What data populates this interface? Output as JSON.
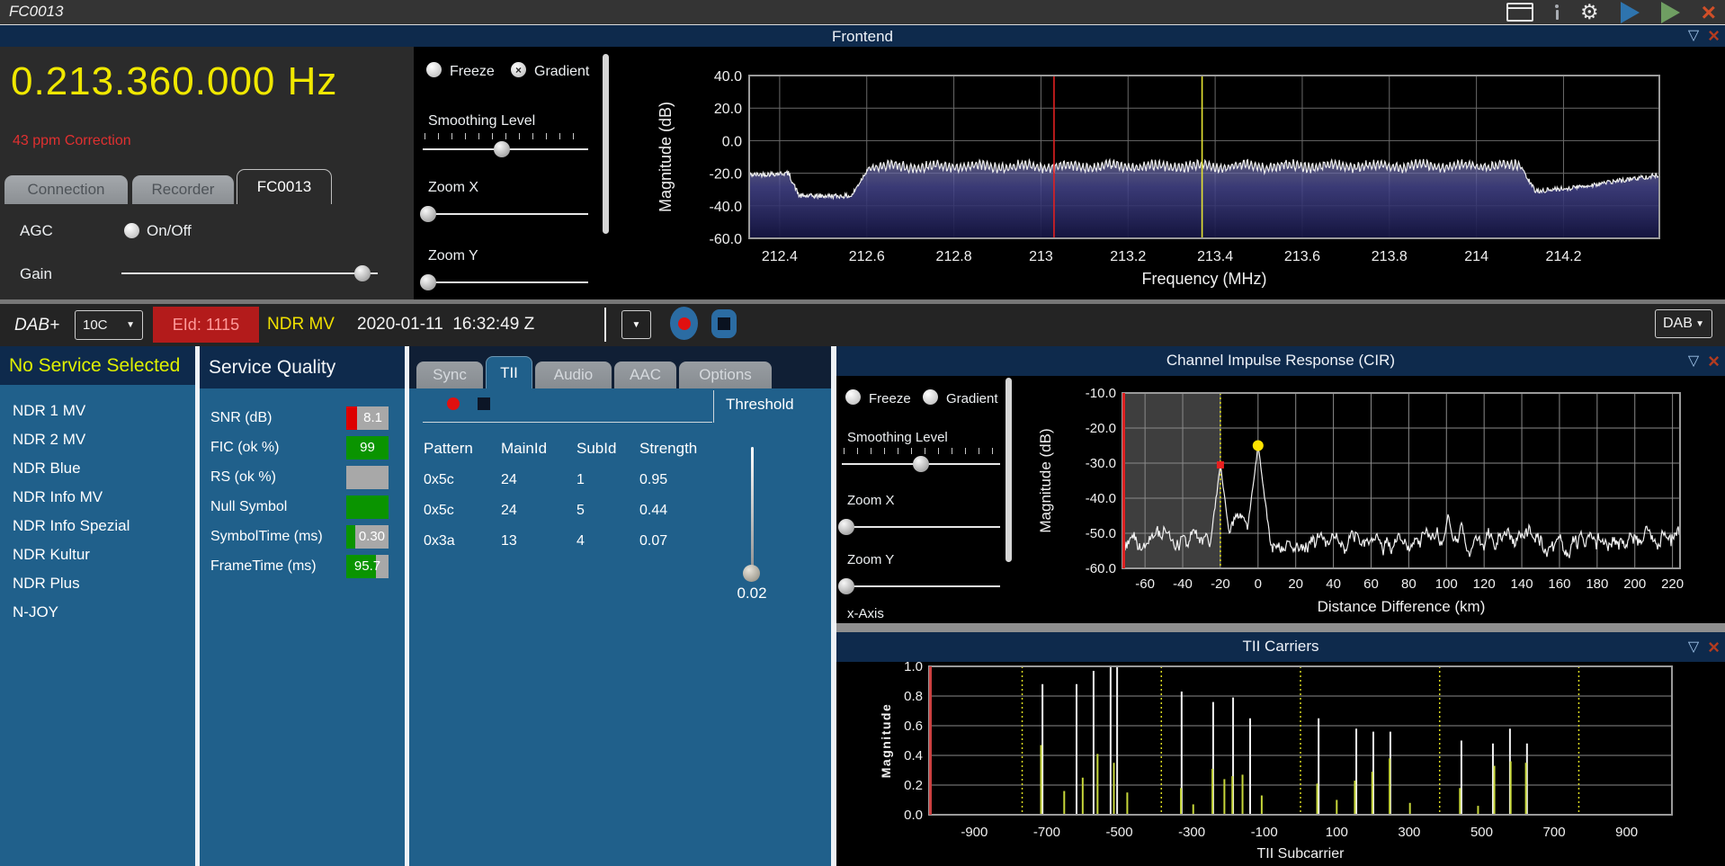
{
  "titlebar": {
    "title": "FC0013",
    "icons": [
      "window-icon",
      "info-icon",
      "gear-icon",
      "play-blue-icon",
      "play-green-icon",
      "close-icon"
    ]
  },
  "frontend": {
    "panel_title": "Frontend",
    "frequency": "0.213.360.000 Hz",
    "correction": "43 ppm Correction",
    "tabs": [
      "Connection",
      "Recorder",
      "FC0013"
    ],
    "active_tab": "FC0013",
    "agc_label": "AGC",
    "agc_option": "On/Off",
    "gain_label": "Gain",
    "controls": {
      "freeze": "Freeze",
      "freeze_checked": false,
      "gradient": "Gradient",
      "gradient_checked": true,
      "smoothing": "Smoothing Level",
      "zoom_x": "Zoom X",
      "zoom_y": "Zoom Y"
    }
  },
  "toolbar": {
    "mode": "DAB+",
    "channel": "10C",
    "eid": "EId: 1115",
    "ensemble": "NDR MV",
    "timestamp": "2020-01-11  16:32:49 Z",
    "record_icon": "record-icon",
    "stop_icon": "stop-icon",
    "output": "DAB"
  },
  "services": {
    "header": "No Service Selected",
    "items": [
      "NDR 1 MV",
      "NDR 2 MV",
      "NDR Blue",
      "NDR Info MV",
      "NDR Info Spezial",
      "NDR Kultur",
      "NDR Plus",
      "N-JOY"
    ]
  },
  "service_quality": {
    "title": "Service Quality",
    "rows": [
      {
        "label": "SNR (dB)",
        "value": "8.1",
        "value_align": "second",
        "segments": [
          {
            "color": "#dd0000",
            "frac": 0.26
          },
          {
            "color": "#a8a8a8",
            "frac": 0.74
          }
        ]
      },
      {
        "label": "FIC (ok %)",
        "value": "99",
        "value_align": "center",
        "segments": [
          {
            "color": "#0a9400",
            "frac": 1.0
          }
        ]
      },
      {
        "label": "RS (ok %)",
        "value": "",
        "value_align": "center",
        "segments": [
          {
            "color": "#a8a8a8",
            "frac": 1.0
          }
        ]
      },
      {
        "label": "Null Symbol",
        "value": "",
        "value_align": "center",
        "segments": [
          {
            "color": "#0a9400",
            "frac": 1.0
          }
        ]
      },
      {
        "label": "SymbolTime (ms)",
        "value": "0.30",
        "value_align": "second",
        "segments": [
          {
            "color": "#0a9400",
            "frac": 0.21
          },
          {
            "color": "#a8a8a8",
            "frac": 0.79
          }
        ]
      },
      {
        "label": "FrameTime (ms)",
        "value": "95.7",
        "value_align": "center",
        "segments": [
          {
            "color": "#0a9400",
            "frac": 0.7
          },
          {
            "color": "#a8a8a8",
            "frac": 0.3
          }
        ]
      }
    ]
  },
  "detail": {
    "tabs": [
      "Sync",
      "TII",
      "Audio",
      "AAC",
      "Options"
    ],
    "active_tab": "TII",
    "record_icon": "record-dot-icon",
    "stop_icon": "stop-square-icon",
    "threshold_label": "Threshold",
    "threshold_value": "0.02",
    "table": {
      "columns": [
        "Pattern",
        "MainId",
        "SubId",
        "Strength"
      ],
      "rows": [
        [
          "0x5c",
          "24",
          "1",
          "0.95"
        ],
        [
          "0x5c",
          "24",
          "5",
          "0.44"
        ],
        [
          "0x3a",
          "13",
          "4",
          "0.07"
        ]
      ]
    }
  },
  "cir": {
    "panel_title": "Channel Impulse Response (CIR)",
    "controls": {
      "freeze": "Freeze",
      "freeze_checked": false,
      "gradient": "Gradient",
      "gradient_checked": false,
      "smoothing": "Smoothing Level",
      "zoom_x": "Zoom X",
      "zoom_y": "Zoom Y",
      "x_axis": "x-Axis"
    }
  },
  "tii": {
    "panel_title": "TII Carriers"
  },
  "chart_data": [
    {
      "id": "spectrum",
      "type": "line",
      "title": "Frontend spectrum",
      "xlabel": "Frequency (MHz)",
      "ylabel": "Magnitude (dB)",
      "xlim": [
        212.33,
        214.42
      ],
      "ylim": [
        -60,
        40
      ],
      "xticks": [
        212.4,
        212.6,
        212.8,
        213.0,
        213.2,
        213.4,
        213.6,
        213.8,
        214.0,
        214.2
      ],
      "xtick_labels": [
        "212.4",
        "212.6",
        "212.8",
        "213",
        "213.2",
        "213.4",
        "213.6",
        "213.8",
        "214",
        "214.2"
      ],
      "yticks": [
        40,
        20,
        0,
        -20,
        -40,
        -60
      ],
      "ytick_labels": [
        "40.0",
        "20.0",
        "0.0",
        "-20.0",
        "-40.0",
        "-60.0"
      ],
      "grid": true,
      "envelope": [
        [
          212.33,
          -21
        ],
        [
          212.42,
          -20
        ],
        [
          212.445,
          -34
        ],
        [
          212.565,
          -34
        ],
        [
          212.605,
          -16
        ],
        [
          214.1,
          -15.5
        ],
        [
          214.135,
          -31
        ],
        [
          214.22,
          -29
        ],
        [
          214.32,
          -25
        ],
        [
          214.42,
          -21
        ]
      ],
      "ripple_region": [
        212.605,
        214.1
      ],
      "cursors": [
        {
          "x": 213.03,
          "color": "#e02020"
        },
        {
          "x": 213.37,
          "color": "#e6e432"
        }
      ]
    },
    {
      "id": "cir",
      "type": "line",
      "title": "Channel Impulse Response (CIR)",
      "xlabel": "Distance Difference (km)",
      "ylabel": "Magnitude (dB)",
      "xlim": [
        -72,
        224
      ],
      "ylim": [
        -60,
        -10
      ],
      "xticks": [
        -60,
        -40,
        -20,
        0,
        20,
        40,
        60,
        80,
        100,
        120,
        140,
        160,
        180,
        200,
        220
      ],
      "yticks": [
        -10,
        -20,
        -30,
        -40,
        -50,
        -60
      ],
      "ytick_labels": [
        "-10.0",
        "-20.0",
        "-30.0",
        "-40.0",
        "-50.0",
        "-60.0"
      ],
      "grid": true,
      "noise_floor_db": -52,
      "peaks": [
        {
          "x": -20,
          "y": -30.5
        },
        {
          "x": 0,
          "y": -25
        },
        {
          "x": 95,
          "y": -48.5
        },
        {
          "x": 101,
          "y": -44
        },
        {
          "x": 108,
          "y": -46.5
        }
      ],
      "markers": [
        {
          "x": -20,
          "y": -30.5,
          "color": "#e82020",
          "shape": "square"
        },
        {
          "x": 0,
          "y": -25,
          "color": "#ffe400",
          "shape": "circle"
        }
      ],
      "shaded_region_x": [
        -72,
        -20
      ],
      "guide_line_x": -20,
      "edge_line_color": "#dd2222"
    },
    {
      "id": "tii",
      "type": "stem",
      "title": "TII Carriers",
      "xlabel": "TII Subcarrier",
      "ylabel": "Magnitude",
      "xlim": [
        -1025,
        1025
      ],
      "ylim": [
        0,
        1
      ],
      "xticks": [
        -900,
        -700,
        -500,
        -300,
        -100,
        100,
        300,
        500,
        700,
        900
      ],
      "yticks": [
        1.0,
        0.8,
        0.6,
        0.4,
        0.2,
        0.0
      ],
      "ytick_labels": [
        "1.0",
        "0.8",
        "0.6",
        "0.4",
        "0.2",
        "0.0"
      ],
      "grid": true,
      "block_boundaries": [
        -768,
        -384,
        0,
        384,
        768
      ],
      "edge_line_color": "#cc4040",
      "spikes_white": [
        [
          -712,
          0.88
        ],
        [
          -618,
          0.88
        ],
        [
          -571,
          0.97
        ],
        [
          -524,
          1.0
        ],
        [
          -506,
          1.0
        ],
        [
          -328,
          0.83
        ],
        [
          -241,
          0.76
        ],
        [
          -186,
          0.79
        ],
        [
          -139,
          0.65
        ],
        [
          50,
          0.65
        ],
        [
          154,
          0.58
        ],
        [
          201,
          0.56
        ],
        [
          248,
          0.56
        ],
        [
          444,
          0.5
        ],
        [
          531,
          0.48
        ],
        [
          578,
          0.58
        ],
        [
          625,
          0.48
        ]
      ],
      "spikes_green": [
        [
          -716,
          0.47
        ],
        [
          -652,
          0.16
        ],
        [
          -601,
          0.25
        ],
        [
          -560,
          0.41
        ],
        [
          -515,
          0.35
        ],
        [
          -478,
          0.15
        ],
        [
          -330,
          0.18
        ],
        [
          -296,
          0.07
        ],
        [
          -243,
          0.31
        ],
        [
          -210,
          0.24
        ],
        [
          -188,
          0.26
        ],
        [
          -160,
          0.27
        ],
        [
          -107,
          0.13
        ],
        [
          46,
          0.21
        ],
        [
          100,
          0.1
        ],
        [
          150,
          0.23
        ],
        [
          198,
          0.29
        ],
        [
          246,
          0.38
        ],
        [
          302,
          0.08
        ],
        [
          440,
          0.18
        ],
        [
          490,
          0.06
        ],
        [
          535,
          0.33
        ],
        [
          580,
          0.36
        ],
        [
          622,
          0.35
        ]
      ]
    }
  ]
}
